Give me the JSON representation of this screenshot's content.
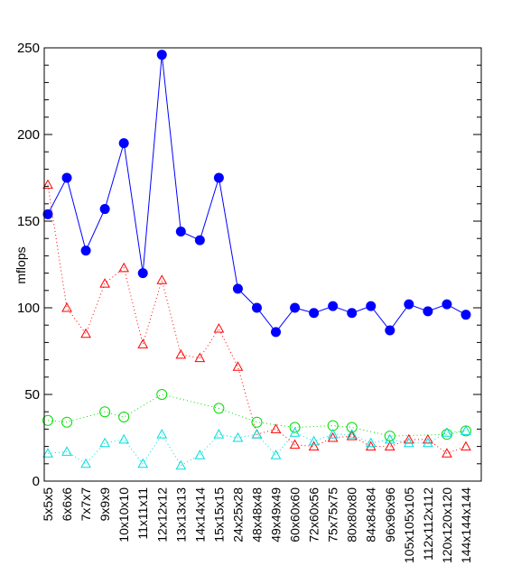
{
  "chart_data": {
    "type": "line",
    "title": "",
    "xlabel": "",
    "ylabel": "mflops",
    "ylim": [
      0,
      250
    ],
    "yticks": [
      0,
      50,
      100,
      150,
      200,
      250
    ],
    "grid": false,
    "categories": [
      "5x5x5",
      "6x6x6",
      "7x7x7",
      "9x9x9",
      "10x10x10",
      "11x11x11",
      "12x12x12",
      "13x13x13",
      "14x14x14",
      "15x15x15",
      "24x25x28",
      "48x48x48",
      "49x49x49",
      "60x60x60",
      "72x60x56",
      "75x75x75",
      "80x80x80",
      "84x84x84",
      "96x96x96",
      "105x105x105",
      "112x112x112",
      "120x120x120",
      "144x144x144"
    ],
    "series": [
      {
        "color": "#0000ff",
        "marker": "filled-circle",
        "line": "solid",
        "values": [
          154,
          175,
          133,
          157,
          195,
          120,
          246,
          144,
          139,
          175,
          111,
          100,
          86,
          100,
          97,
          101,
          97,
          101,
          87,
          102,
          98,
          102,
          96
        ]
      },
      {
        "color": "#ff0000",
        "marker": "triangle",
        "line": "dotted",
        "values": [
          171,
          100,
          85,
          114,
          123,
          79,
          116,
          73,
          71,
          88,
          66,
          27,
          30,
          21,
          20,
          25,
          26,
          20,
          20,
          24,
          24,
          16,
          20
        ]
      },
      {
        "color": "#00dd00",
        "marker": "open-circle",
        "line": "dotted",
        "values": [
          35,
          34,
          null,
          40,
          37,
          null,
          50,
          null,
          null,
          42,
          null,
          34,
          null,
          31,
          null,
          32,
          31,
          null,
          26,
          null,
          null,
          27,
          29
        ]
      },
      {
        "color": "#00dddd",
        "marker": "triangle",
        "line": "dotted",
        "values": [
          16,
          17,
          10,
          22,
          24,
          10,
          27,
          9,
          15,
          27,
          25,
          27,
          15,
          28,
          23,
          27,
          27,
          22,
          24,
          22,
          22,
          28,
          29
        ]
      }
    ]
  }
}
